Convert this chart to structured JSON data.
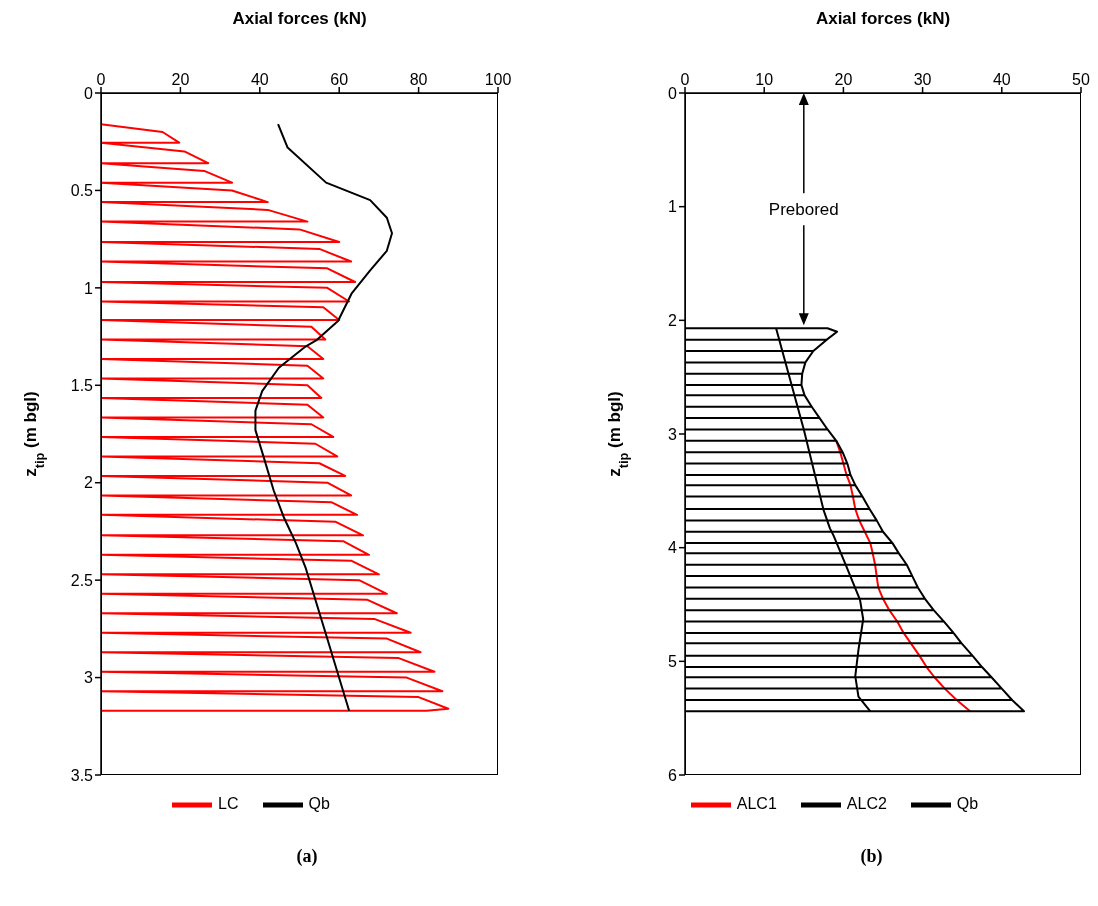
{
  "chart_data": [
    {
      "type": "line",
      "title": "(a)",
      "xlabel": "Axial forces (kN)",
      "ylabel": "z$_{tip}$ (m bgl)",
      "xlim": [
        0,
        100
      ],
      "xticks": [
        0,
        20,
        40,
        60,
        80,
        100
      ],
      "ylim": [
        3.5,
        0
      ],
      "yticks": [
        0,
        0.5,
        1,
        1.5,
        2,
        2.5,
        3,
        3.5
      ],
      "legend": "bottom",
      "marker": "none",
      "grid": false,
      "series": [
        {
          "name": "LC",
          "color": "#ff0000",
          "x": [
            0,
            15.5,
            19.7,
            0,
            21,
            27,
            0,
            26,
            33,
            0,
            33,
            42,
            0,
            42,
            52,
            0,
            50,
            60,
            0,
            55,
            63,
            0,
            57,
            64,
            0,
            57,
            62.5,
            0,
            56,
            60,
            0,
            53,
            56.5,
            0,
            52,
            56,
            0,
            52,
            56,
            0,
            52,
            55.5,
            0,
            52,
            56,
            0,
            53,
            58.5,
            0,
            54,
            59.5,
            0,
            55,
            61.5,
            0,
            57,
            63,
            0,
            58,
            64.5,
            0,
            59,
            66,
            0,
            61,
            67.5,
            0,
            63,
            70,
            0,
            65,
            72,
            0,
            67,
            74.5,
            0,
            69,
            78,
            0,
            72,
            80.5,
            0,
            75,
            84,
            0,
            77,
            86,
            0,
            80,
            87.5,
            82,
            0
          ],
          "values": [
            0.16,
            0.2,
            0.255,
            0.255,
            0.3,
            0.36,
            0.36,
            0.4,
            0.46,
            0.46,
            0.5,
            0.56,
            0.56,
            0.6,
            0.66,
            0.66,
            0.7,
            0.765,
            0.765,
            0.8,
            0.865,
            0.865,
            0.9,
            0.97,
            0.97,
            1.0,
            1.07,
            1.07,
            1.1,
            1.165,
            1.165,
            1.2,
            1.265,
            1.265,
            1.3,
            1.365,
            1.365,
            1.4,
            1.465,
            1.465,
            1.5,
            1.565,
            1.565,
            1.6,
            1.665,
            1.665,
            1.7,
            1.765,
            1.765,
            1.8,
            1.865,
            1.865,
            1.9,
            1.965,
            1.965,
            2.0,
            2.065,
            2.065,
            2.1,
            2.165,
            2.165,
            2.2,
            2.27,
            2.27,
            2.3,
            2.37,
            2.37,
            2.4,
            2.47,
            2.47,
            2.5,
            2.57,
            2.57,
            2.6,
            2.67,
            2.67,
            2.7,
            2.77,
            2.77,
            2.8,
            2.87,
            2.87,
            2.9,
            2.97,
            2.97,
            3.0,
            3.07,
            3.07,
            3.1,
            3.16,
            3.17,
            3.17
          ]
        },
        {
          "name": "Qb",
          "color": "#000000",
          "x": [
            44.6,
            47,
            56.7,
            67.8,
            72,
            73.3,
            72,
            67.8,
            63.1,
            59.7,
            54.2,
            51.6,
            44.8,
            40.6,
            38.9,
            38.9,
            41,
            43.5,
            46.1,
            49.1,
            51.6,
            56.7,
            62.5
          ],
          "values": [
            0.16,
            0.28,
            0.46,
            0.55,
            0.64,
            0.72,
            0.81,
            0.91,
            1.03,
            1.17,
            1.27,
            1.3,
            1.41,
            1.53,
            1.63,
            1.73,
            1.87,
            2.04,
            2.18,
            2.31,
            2.44,
            2.78,
            3.17
          ]
        }
      ]
    },
    {
      "type": "line",
      "title": "(b)",
      "xlabel": "Axial forces (kN)",
      "ylabel": "z$_{tip}$ (m bgl)",
      "xlim": [
        0,
        50
      ],
      "xticks": [
        0,
        10,
        20,
        30,
        40,
        50
      ],
      "ylim": [
        6,
        0
      ],
      "yticks": [
        0,
        1,
        2,
        3,
        4,
        5,
        6
      ],
      "legend": "bottom",
      "marker": "none",
      "grid": false,
      "annotations": [
        "Prebored"
      ],
      "series": [
        {
          "name": "ALC1",
          "color": "#ff0000",
          "x": [
            19.1,
            19.6,
            20,
            20.4,
            20.9,
            21.2,
            21.5,
            22,
            22.7,
            23.4,
            23.7,
            24,
            24.2,
            24.4,
            25,
            25.8,
            26.8,
            27.6,
            28.5,
            29.6,
            30.5,
            31.5,
            32.8,
            34.3,
            36
          ],
          "values": [
            3.06,
            3.16,
            3.26,
            3.36,
            3.45,
            3.55,
            3.66,
            3.76,
            3.86,
            3.96,
            4.05,
            4.15,
            4.25,
            4.35,
            4.45,
            4.55,
            4.65,
            4.75,
            4.84,
            4.95,
            5.05,
            5.14,
            5.24,
            5.34,
            5.44
          ]
        },
        {
          "name": "ALC2",
          "color": "#000000",
          "x": [
            0,
            18,
            19.2,
            17.9,
            0,
            17.9,
            16.2,
            0,
            16.2,
            15.2,
            0,
            15.2,
            14.8,
            0,
            14.8,
            14.7,
            0,
            14.7,
            15.1,
            0,
            15.1,
            16,
            0,
            16,
            17,
            0,
            17,
            18,
            0,
            18,
            19.1,
            0,
            19.1,
            19.9,
            0,
            19.9,
            20.5,
            0,
            20.5,
            20.9,
            0,
            20.9,
            21.5,
            0,
            21.5,
            22.4,
            0,
            22.4,
            23.3,
            0,
            23.3,
            24.2,
            0,
            24.2,
            25,
            0,
            25,
            26.2,
            0,
            26.2,
            27,
            0,
            27,
            28,
            0,
            28,
            28.7,
            0,
            28.7,
            29.4,
            0,
            29.4,
            30.3,
            0,
            30.3,
            31.4,
            0,
            31.4,
            32.7,
            0,
            32.7,
            33.9,
            0,
            33.9,
            34.9,
            0,
            34.9,
            36.3,
            0,
            36.3,
            37.5,
            0,
            37.5,
            38.7,
            0,
            38.7,
            40,
            0,
            40,
            41.3,
            0,
            41.3,
            42.8,
            0
          ],
          "values": [
            2.07,
            2.07,
            2.1,
            2.17,
            2.17,
            2.17,
            2.27,
            2.27,
            2.27,
            2.37,
            2.37,
            2.37,
            2.47,
            2.47,
            2.47,
            2.57,
            2.57,
            2.57,
            2.66,
            2.66,
            2.66,
            2.76,
            2.76,
            2.76,
            2.86,
            2.86,
            2.86,
            2.96,
            2.96,
            2.96,
            3.06,
            3.06,
            3.06,
            3.16,
            3.16,
            3.16,
            3.26,
            3.26,
            3.26,
            3.36,
            3.36,
            3.36,
            3.45,
            3.45,
            3.45,
            3.55,
            3.55,
            3.55,
            3.66,
            3.66,
            3.66,
            3.76,
            3.76,
            3.76,
            3.86,
            3.86,
            3.86,
            3.96,
            3.96,
            3.96,
            4.05,
            4.05,
            4.05,
            4.15,
            4.15,
            4.15,
            4.25,
            4.25,
            4.25,
            4.35,
            4.35,
            4.35,
            4.45,
            4.45,
            4.45,
            4.55,
            4.55,
            4.55,
            4.65,
            4.65,
            4.65,
            4.75,
            4.75,
            4.75,
            4.84,
            4.84,
            4.84,
            4.95,
            4.95,
            4.95,
            5.05,
            5.05,
            5.05,
            5.14,
            5.14,
            5.14,
            5.24,
            5.24,
            5.24,
            5.34,
            5.34,
            5.34,
            5.44,
            5.44
          ]
        },
        {
          "name": "Qb",
          "color": "#000000",
          "x": [
            11.5,
            15,
            17.5,
            18.3,
            18.8,
            20.4,
            22.1,
            22.5,
            21.9,
            21.5,
            21.9,
            23.4
          ],
          "values": [
            2.07,
            2.96,
            3.67,
            3.83,
            3.9,
            4.17,
            4.46,
            4.63,
            4.9,
            5.13,
            5.31,
            5.44
          ]
        }
      ]
    }
  ]
}
